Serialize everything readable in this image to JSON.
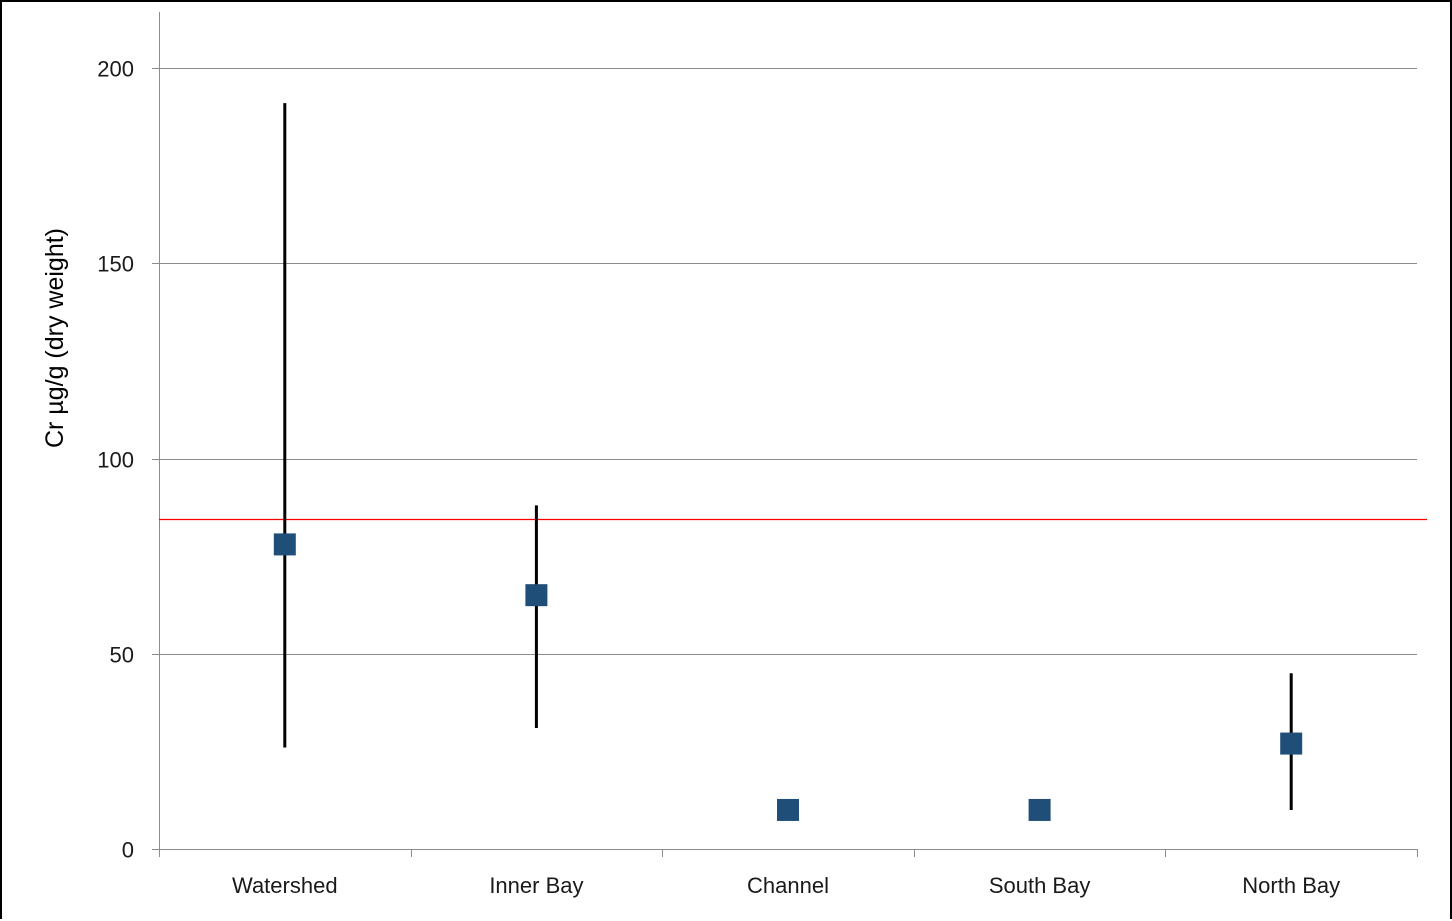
{
  "chart_data": {
    "type": "scatter",
    "title": "",
    "xlabel": "",
    "ylabel": "Cr  µg/g (dry weight)",
    "categories": [
      "Watershed",
      "Inner Bay",
      "Channel",
      "South Bay",
      "North Bay"
    ],
    "values": [
      78,
      65,
      10,
      10,
      27
    ],
    "error_low": [
      26,
      31,
      null,
      null,
      10
    ],
    "error_high": [
      191,
      88,
      null,
      null,
      45
    ],
    "reference_line": {
      "value": 84.5,
      "color": "#ff0000"
    },
    "ylim": [
      0,
      200
    ],
    "yticks": [
      0,
      50,
      100,
      150,
      200
    ],
    "grid": true,
    "legend": "none",
    "marker_color": "#1f4e79",
    "error_bar_color": "#000000",
    "grid_color": "#8c8c8c"
  }
}
